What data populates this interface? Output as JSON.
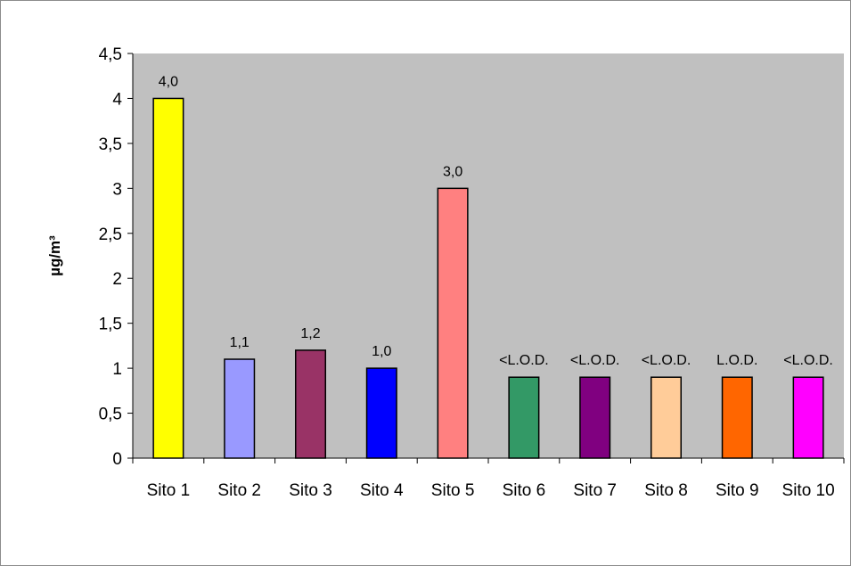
{
  "chart_data": {
    "type": "bar",
    "title": "",
    "xlabel": "",
    "ylabel": "µg/m³",
    "ylim": [
      0,
      4.5
    ],
    "yticks": [
      "0",
      "0,5",
      "1",
      "1,5",
      "2",
      "2,5",
      "3",
      "3,5",
      "4",
      "4,5"
    ],
    "grid": false,
    "legend": "none",
    "plot_background": "#c0c0c0",
    "categories": [
      "Sito 1",
      "Sito 2",
      "Sito 3",
      "Sito 4",
      "Sito 5",
      "Sito 6",
      "Sito 7",
      "Sito 8",
      "Sito 9",
      "Sito 10"
    ],
    "values": [
      4.0,
      1.1,
      1.2,
      1.0,
      3.0,
      0.9,
      0.9,
      0.9,
      0.9,
      0.9
    ],
    "data_labels": [
      "4,0",
      "1,1",
      "1,2",
      "1,0",
      "3,0",
      "<L.O.D.",
      "<L.O.D.",
      "<L.O.D.",
      "L.O.D.",
      "<L.O.D."
    ],
    "colors": [
      "#ffff00",
      "#9999ff",
      "#993366",
      "#0000ff",
      "#ff8080",
      "#339966",
      "#800080",
      "#ffcc99",
      "#ff6600",
      "#ff00ff"
    ]
  }
}
